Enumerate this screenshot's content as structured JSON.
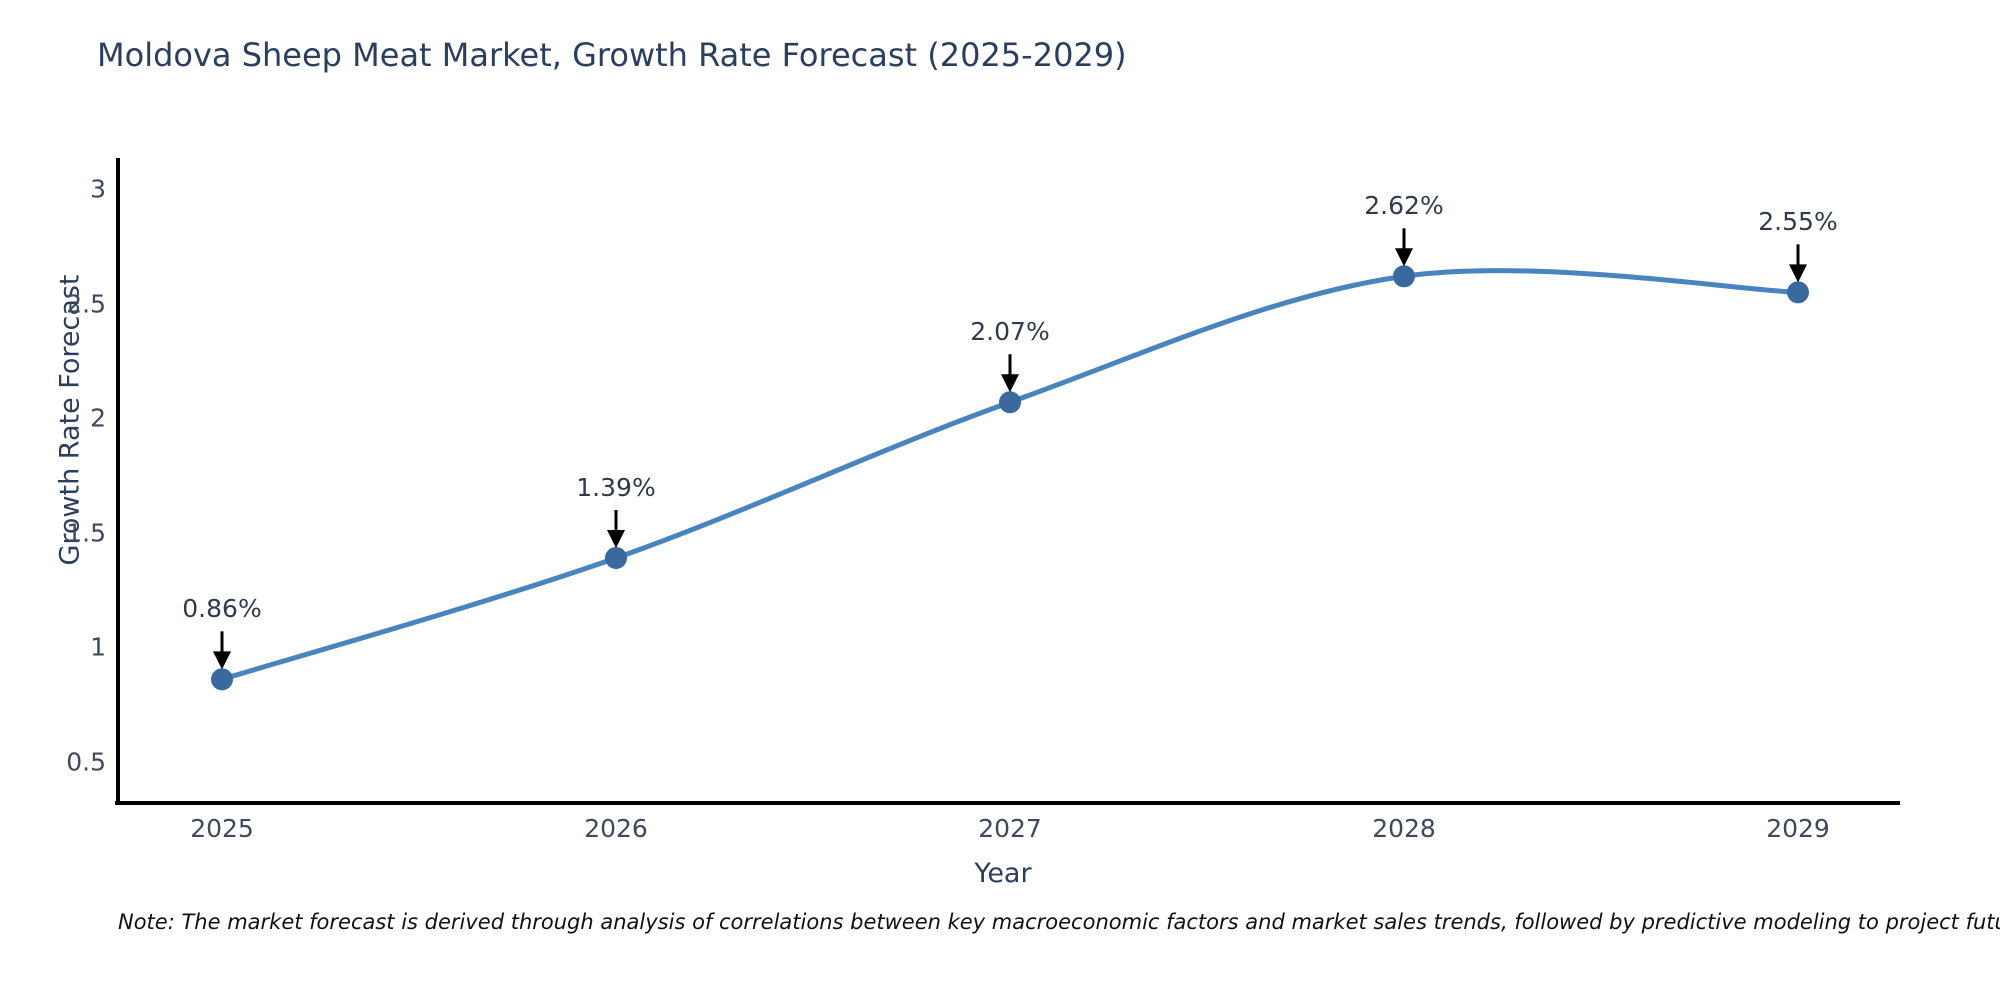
{
  "chart_data": {
    "type": "line",
    "title": "Moldova Sheep Meat Market, Growth Rate Forecast (2025-2029)",
    "xlabel": "Year",
    "ylabel": "Growth Rate Forecast",
    "x": [
      "2025",
      "2026",
      "2027",
      "2028",
      "2029"
    ],
    "values": [
      0.86,
      1.39,
      2.07,
      2.62,
      2.55
    ],
    "point_labels": [
      "0.86%",
      "1.39%",
      "2.07%",
      "2.62%",
      "2.55%"
    ],
    "yticks": [
      "0.5",
      "1",
      "1.5",
      "2",
      "2.5",
      "3"
    ],
    "ytick_values": [
      0.5,
      1,
      1.5,
      2,
      2.5,
      3
    ],
    "ylim": [
      0.32,
      3.13
    ],
    "line_shape": "spline",
    "grid": false,
    "legend": "none",
    "colors": {
      "line": "#4884bd",
      "marker": "#39699f",
      "axis": "#000000",
      "arrow": "#000000",
      "title_text": "#2a3f5f",
      "tick_text": "#3d4a5c",
      "annotation_text": "#2f3b4c",
      "background": "#ffffff"
    },
    "note": "Note: The market forecast is derived through analysis of correlations between key macroeconomic factors and market sales trends, followed by predictive modeling to project future sales"
  }
}
